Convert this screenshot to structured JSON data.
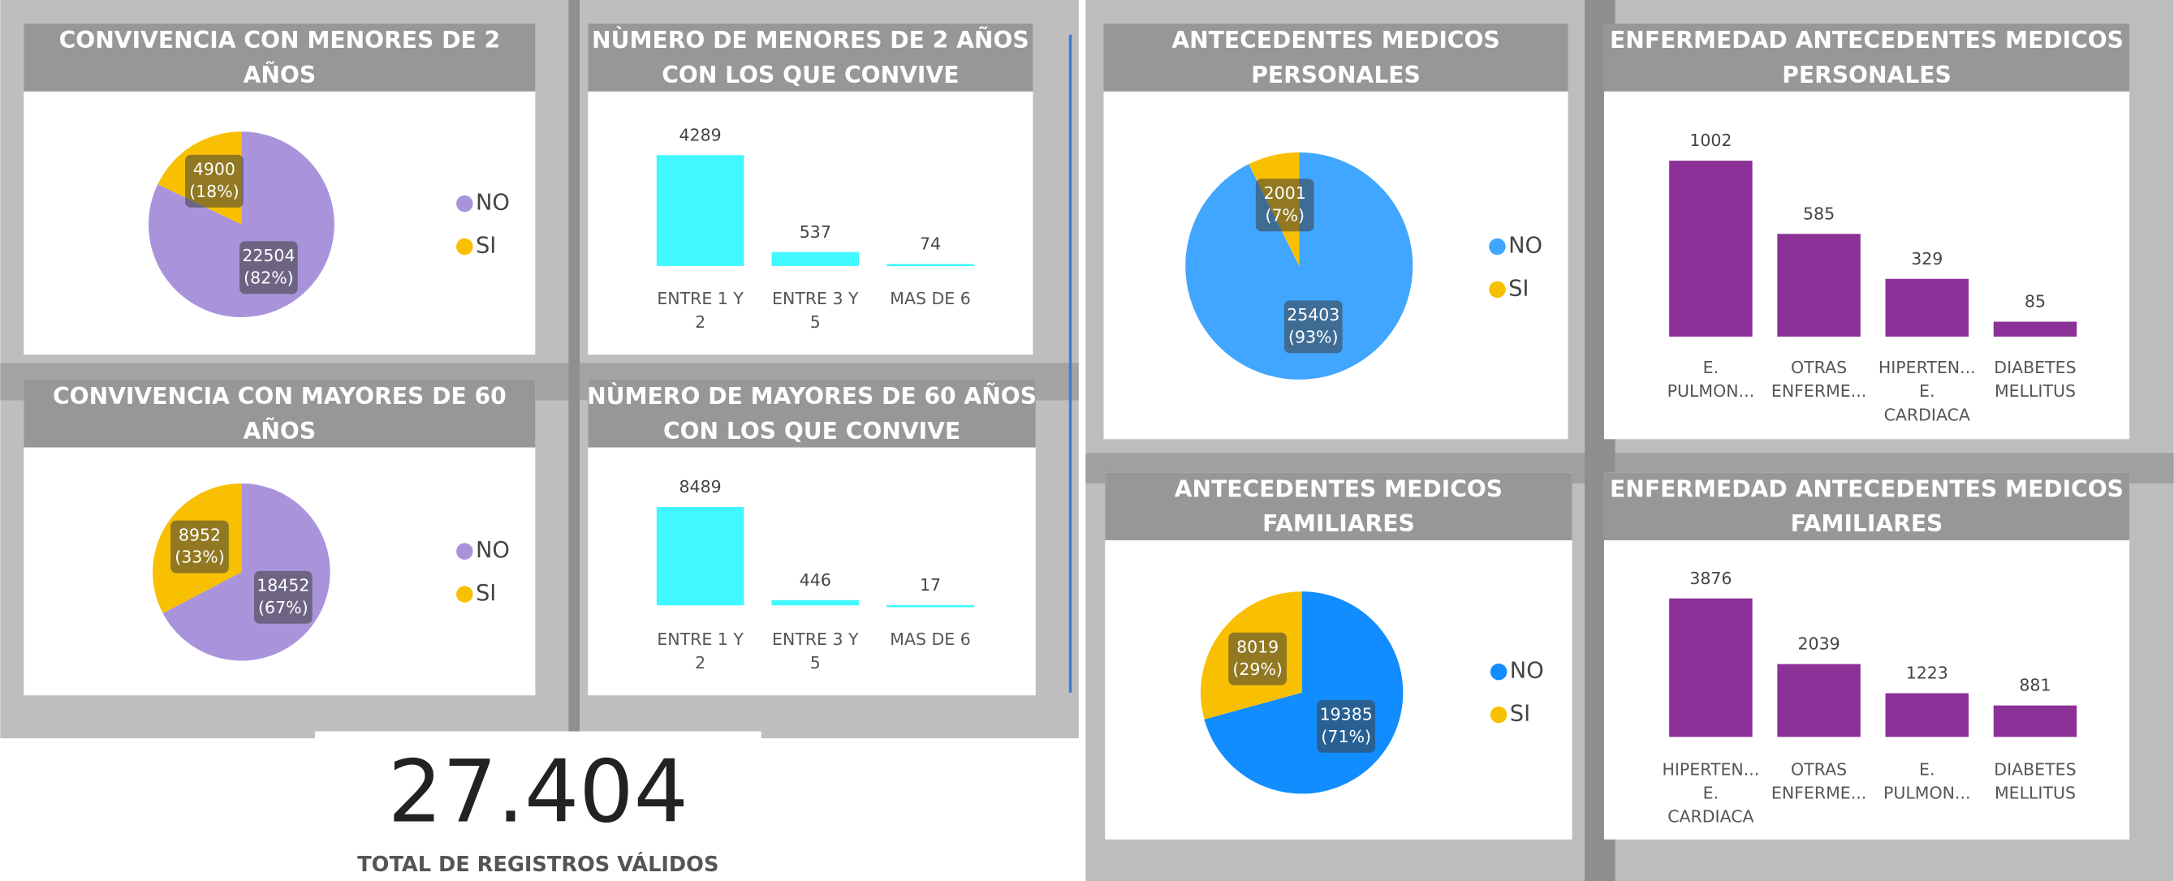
{
  "chart_data": [
    {
      "type": "pie",
      "title": "CONVIVENCIA CON MENORES DE 2 AÑOS",
      "categories": [
        "NO",
        "SI"
      ],
      "values": [
        22504,
        4900
      ],
      "percent_labels": [
        "(82%)",
        "(18%)"
      ],
      "colors": [
        "#a994dc",
        "#f8c000"
      ]
    },
    {
      "type": "bar",
      "title": "NÙMERO DE MENORES DE 2 AÑOS CON LOS QUE CONVIVE",
      "categories": [
        "ENTRE 1 Y 2",
        "ENTRE 3 Y 5",
        "MAS DE 6"
      ],
      "values": [
        4289,
        537,
        74
      ],
      "color": "#40f8ff"
    },
    {
      "type": "pie",
      "title": "CONVIVENCIA CON MAYORES DE 60 AÑOS",
      "categories": [
        "NO",
        "SI"
      ],
      "values": [
        18452,
        8952
      ],
      "percent_labels": [
        "(67%)",
        "(33%)"
      ],
      "colors": [
        "#a994dc",
        "#f8c000"
      ]
    },
    {
      "type": "bar",
      "title": "NÙMERO DE MAYORES DE 60 AÑOS CON LOS QUE CONVIVE",
      "categories": [
        "ENTRE 1 Y 2",
        "ENTRE 3 Y 5",
        "MAS DE 6"
      ],
      "values": [
        8489,
        446,
        17
      ],
      "color": "#40f8ff"
    },
    {
      "type": "pie",
      "title": "ANTECEDENTES MEDICOS PERSONALES",
      "categories": [
        "NO",
        "SI"
      ],
      "values": [
        25403,
        2001
      ],
      "percent_labels": [
        "(93%)",
        "(7%)"
      ],
      "colors": [
        "#40a6ff",
        "#f8c000"
      ]
    },
    {
      "type": "bar",
      "title": "ENFERMEDAD ANTECEDENTES MEDICOS PERSONALES",
      "categories": [
        "E. PULMON...",
        "OTRAS ENFERME...",
        "HIPERTEN... E. CARDIACA",
        "DIABETES MELLITUS"
      ],
      "values": [
        1002,
        585,
        329,
        85
      ],
      "color": "#8b3197"
    },
    {
      "type": "pie",
      "title": "ANTECEDENTES MEDICOS FAMILIARES",
      "categories": [
        "NO",
        "SI"
      ],
      "values": [
        19385,
        8019
      ],
      "percent_labels": [
        "(71%)",
        "(29%)"
      ],
      "colors": [
        "#118dff",
        "#f8c000"
      ]
    },
    {
      "type": "bar",
      "title": "ENFERMEDAD ANTECEDENTES MEDICOS FAMILIARES",
      "categories": [
        "HIPERTEN... E. CARDIACA",
        "OTRAS ENFERME...",
        "E. PULMON...",
        "DIABETES MELLITUS"
      ],
      "values": [
        3876,
        2039,
        1223,
        881
      ],
      "color": "#8b3197"
    }
  ],
  "kpi": {
    "value": {
      "value": 27404,
      "label": "27.404"
    },
    "title": "TOTAL DE REGISTROS VÁLIDOS"
  }
}
